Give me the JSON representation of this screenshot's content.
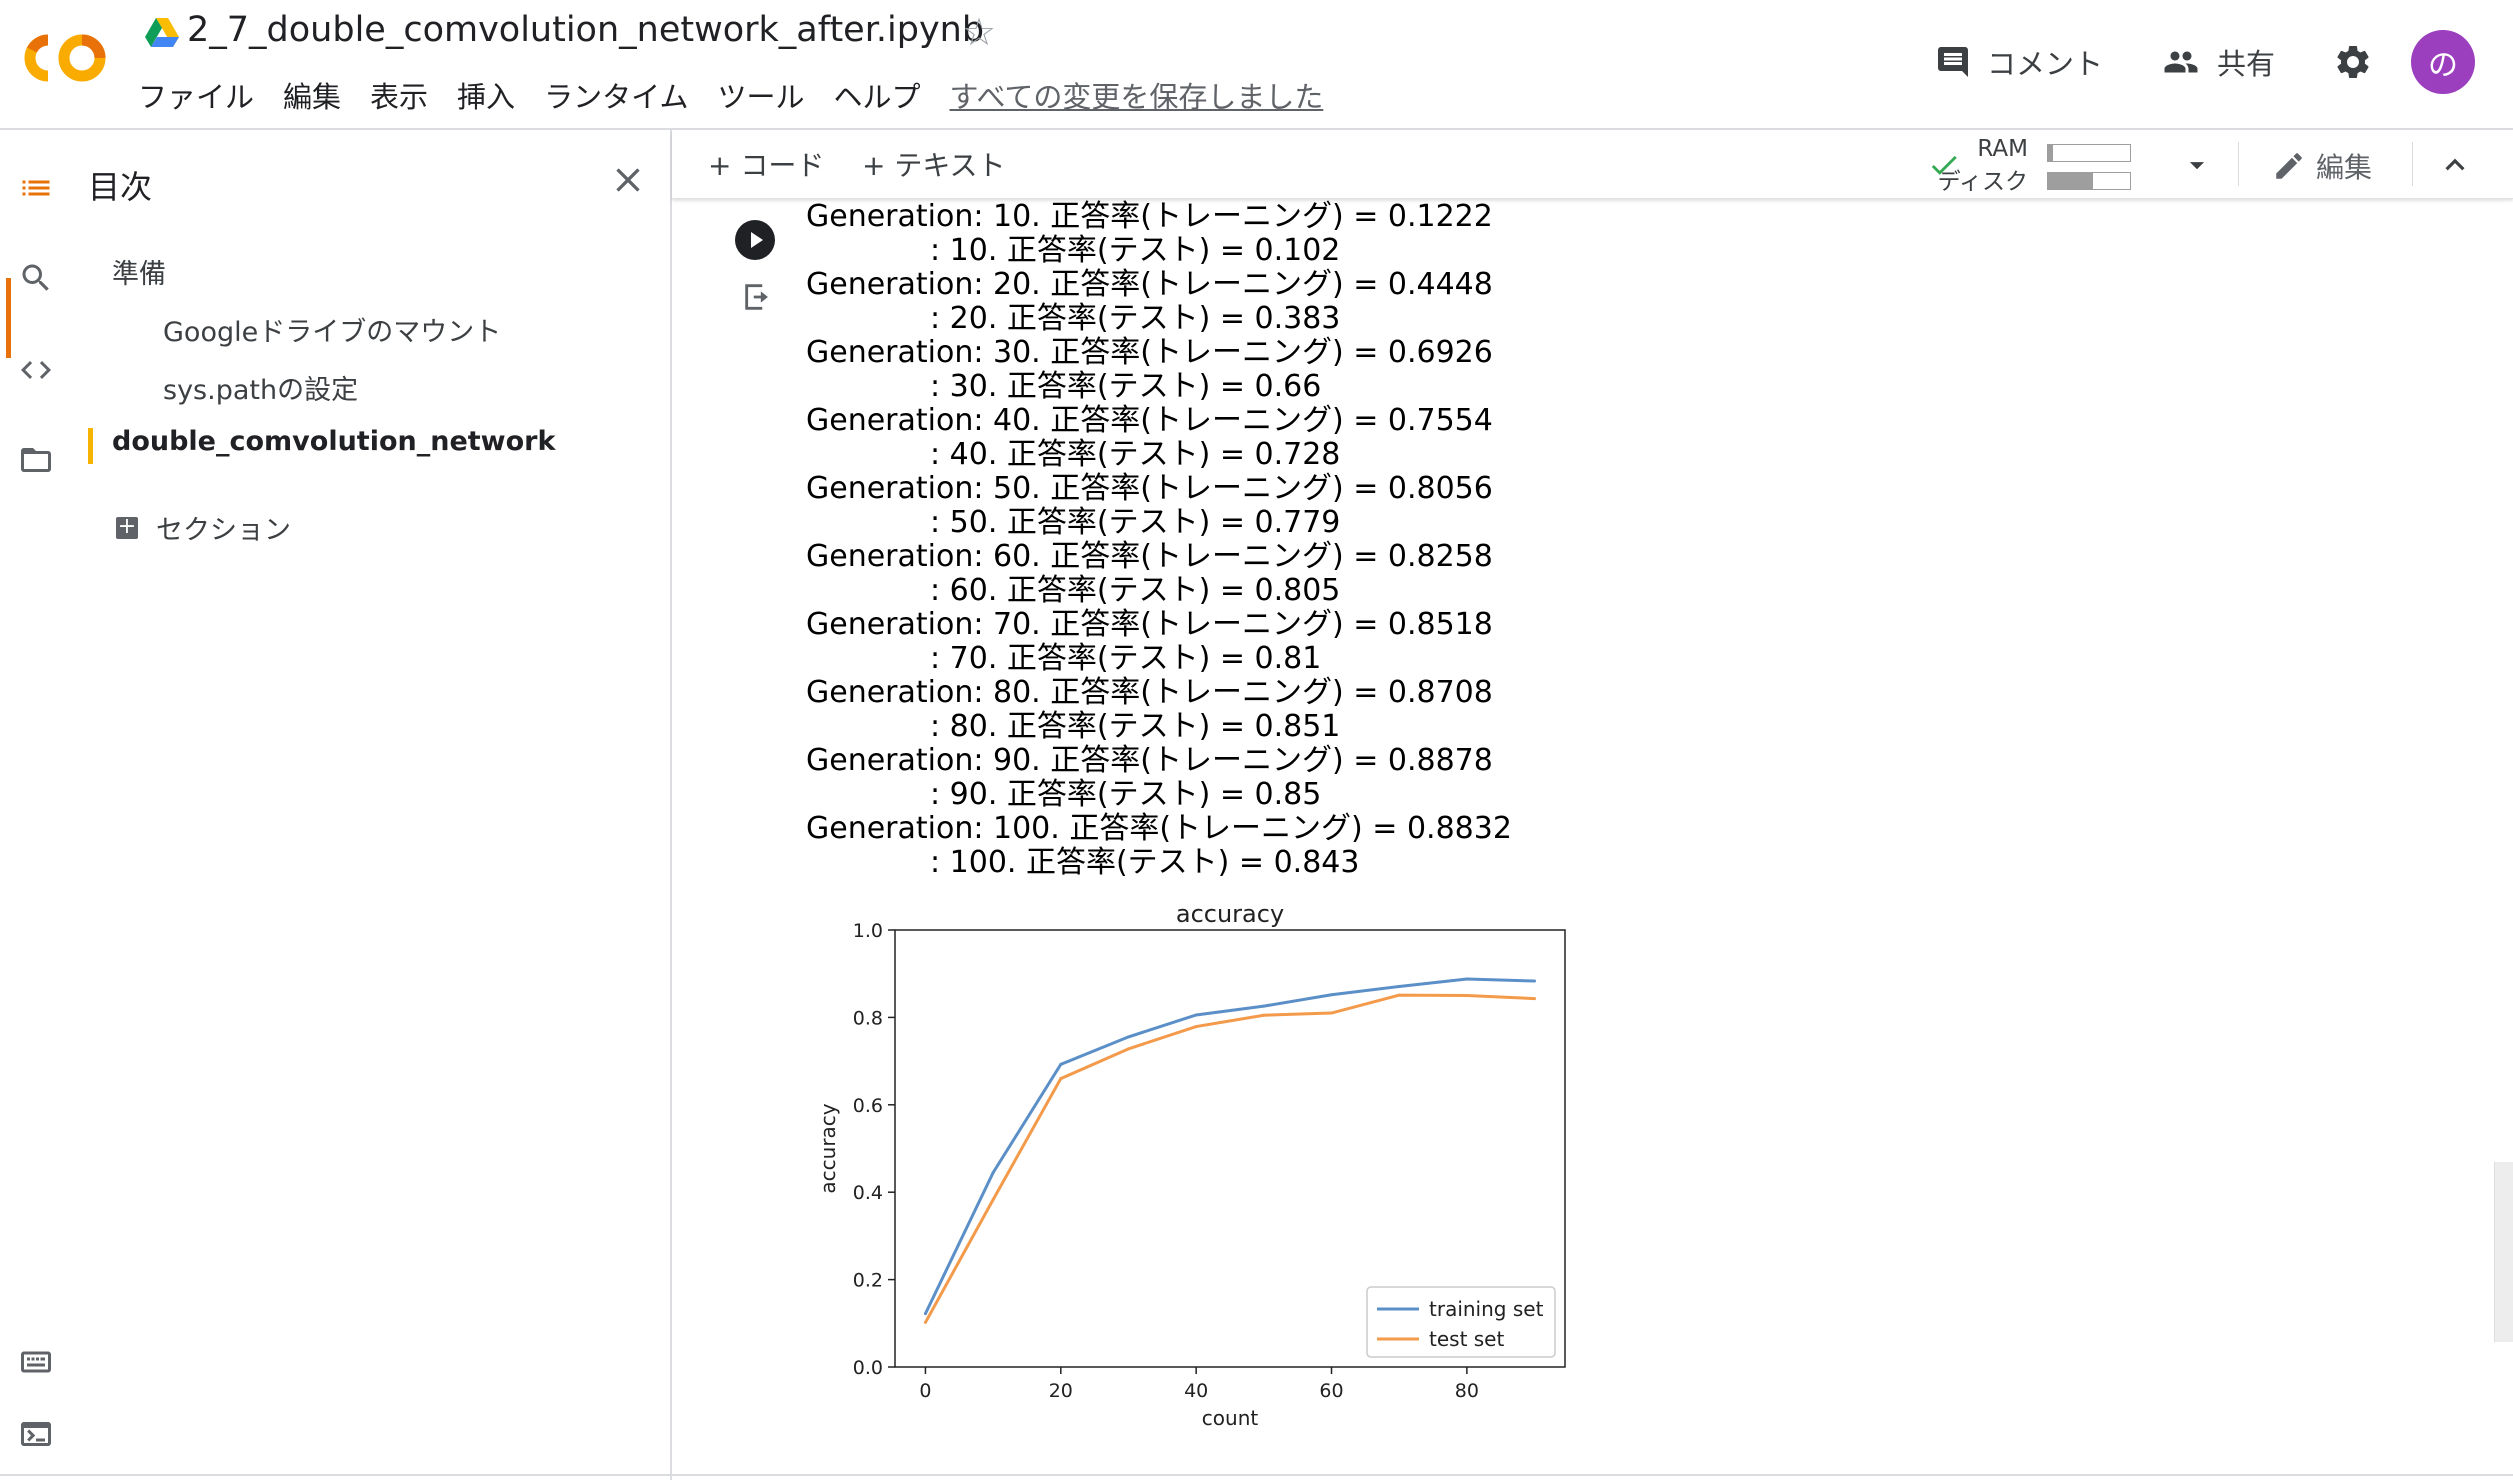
{
  "header": {
    "notebook_title": "2_7_double_comvolution_network_after.ipynb",
    "menu": [
      "ファイル",
      "編集",
      "表示",
      "挿入",
      "ランタイム",
      "ツール",
      "ヘルプ"
    ],
    "saved_message": "すべての変更を保存しました",
    "comment_label": "コメント",
    "share_label": "共有",
    "avatar_letter": "の",
    "avatar_color": "#9c3fbf",
    "logo_text": "CO"
  },
  "toc": {
    "title": "目次",
    "items": [
      {
        "label": "準備",
        "level": 1
      },
      {
        "label": "Googleドライブのマウント",
        "level": 2
      },
      {
        "label": "sys.pathの設定",
        "level": 2
      },
      {
        "label": "double_comvolution_network",
        "level": 1,
        "active": true
      }
    ],
    "add_section_label": "セクション"
  },
  "toolbar": {
    "add_code": "+ コード",
    "add_text": "+ テキスト",
    "ram_label": "RAM",
    "disk_label": "ディスク",
    "ram_usage": 0.06,
    "disk_usage": 0.55,
    "edit_label": "編集"
  },
  "output": {
    "lines": [
      {
        "main": "Generation: 10. 正答率(トレーニング) = 0.1222",
        "sub": ": 10. 正答率(テスト) = 0.102"
      },
      {
        "main": "Generation: 20. 正答率(トレーニング) = 0.4448",
        "sub": ": 20. 正答率(テスト) = 0.383"
      },
      {
        "main": "Generation: 30. 正答率(トレーニング) = 0.6926",
        "sub": ": 30. 正答率(テスト) = 0.66"
      },
      {
        "main": "Generation: 40. 正答率(トレーニング) = 0.7554",
        "sub": ": 40. 正答率(テスト) = 0.728"
      },
      {
        "main": "Generation: 50. 正答率(トレーニング) = 0.8056",
        "sub": ": 50. 正答率(テスト) = 0.779"
      },
      {
        "main": "Generation: 60. 正答率(トレーニング) = 0.8258",
        "sub": ": 60. 正答率(テスト) = 0.805"
      },
      {
        "main": "Generation: 70. 正答率(トレーニング) = 0.8518",
        "sub": ": 70. 正答率(テスト) = 0.81"
      },
      {
        "main": "Generation: 80. 正答率(トレーニング) = 0.8708",
        "sub": ": 80. 正答率(テスト) = 0.851"
      },
      {
        "main": "Generation: 90. 正答率(トレーニング) = 0.8878",
        "sub": ": 90. 正答率(テスト) = 0.85"
      },
      {
        "main": "Generation: 100. 正答率(トレーニング) = 0.8832",
        "sub": ": 100. 正答率(テスト) = 0.843"
      }
    ]
  },
  "chart_data": {
    "type": "line",
    "title": "accuracy",
    "xlabel": "count",
    "ylabel": "accuracy",
    "x": [
      0,
      10,
      20,
      30,
      40,
      50,
      60,
      70,
      80,
      90
    ],
    "series": [
      {
        "name": "training set",
        "color": "#5b8fc7",
        "values": [
          0.1222,
          0.4448,
          0.6926,
          0.7554,
          0.8056,
          0.8258,
          0.8518,
          0.8708,
          0.8878,
          0.8832
        ]
      },
      {
        "name": "test set",
        "color": "#f39a4b",
        "values": [
          0.102,
          0.383,
          0.66,
          0.728,
          0.779,
          0.805,
          0.81,
          0.851,
          0.85,
          0.843
        ]
      }
    ],
    "xlim": [
      -4.5,
      94.5
    ],
    "ylim": [
      0.0,
      1.0
    ],
    "xticks": [
      "0",
      "20",
      "40",
      "60",
      "80"
    ],
    "yticks": [
      "0.0",
      "0.2",
      "0.4",
      "0.6",
      "0.8",
      "1.0"
    ],
    "legend": "lower-right",
    "grid": false
  }
}
